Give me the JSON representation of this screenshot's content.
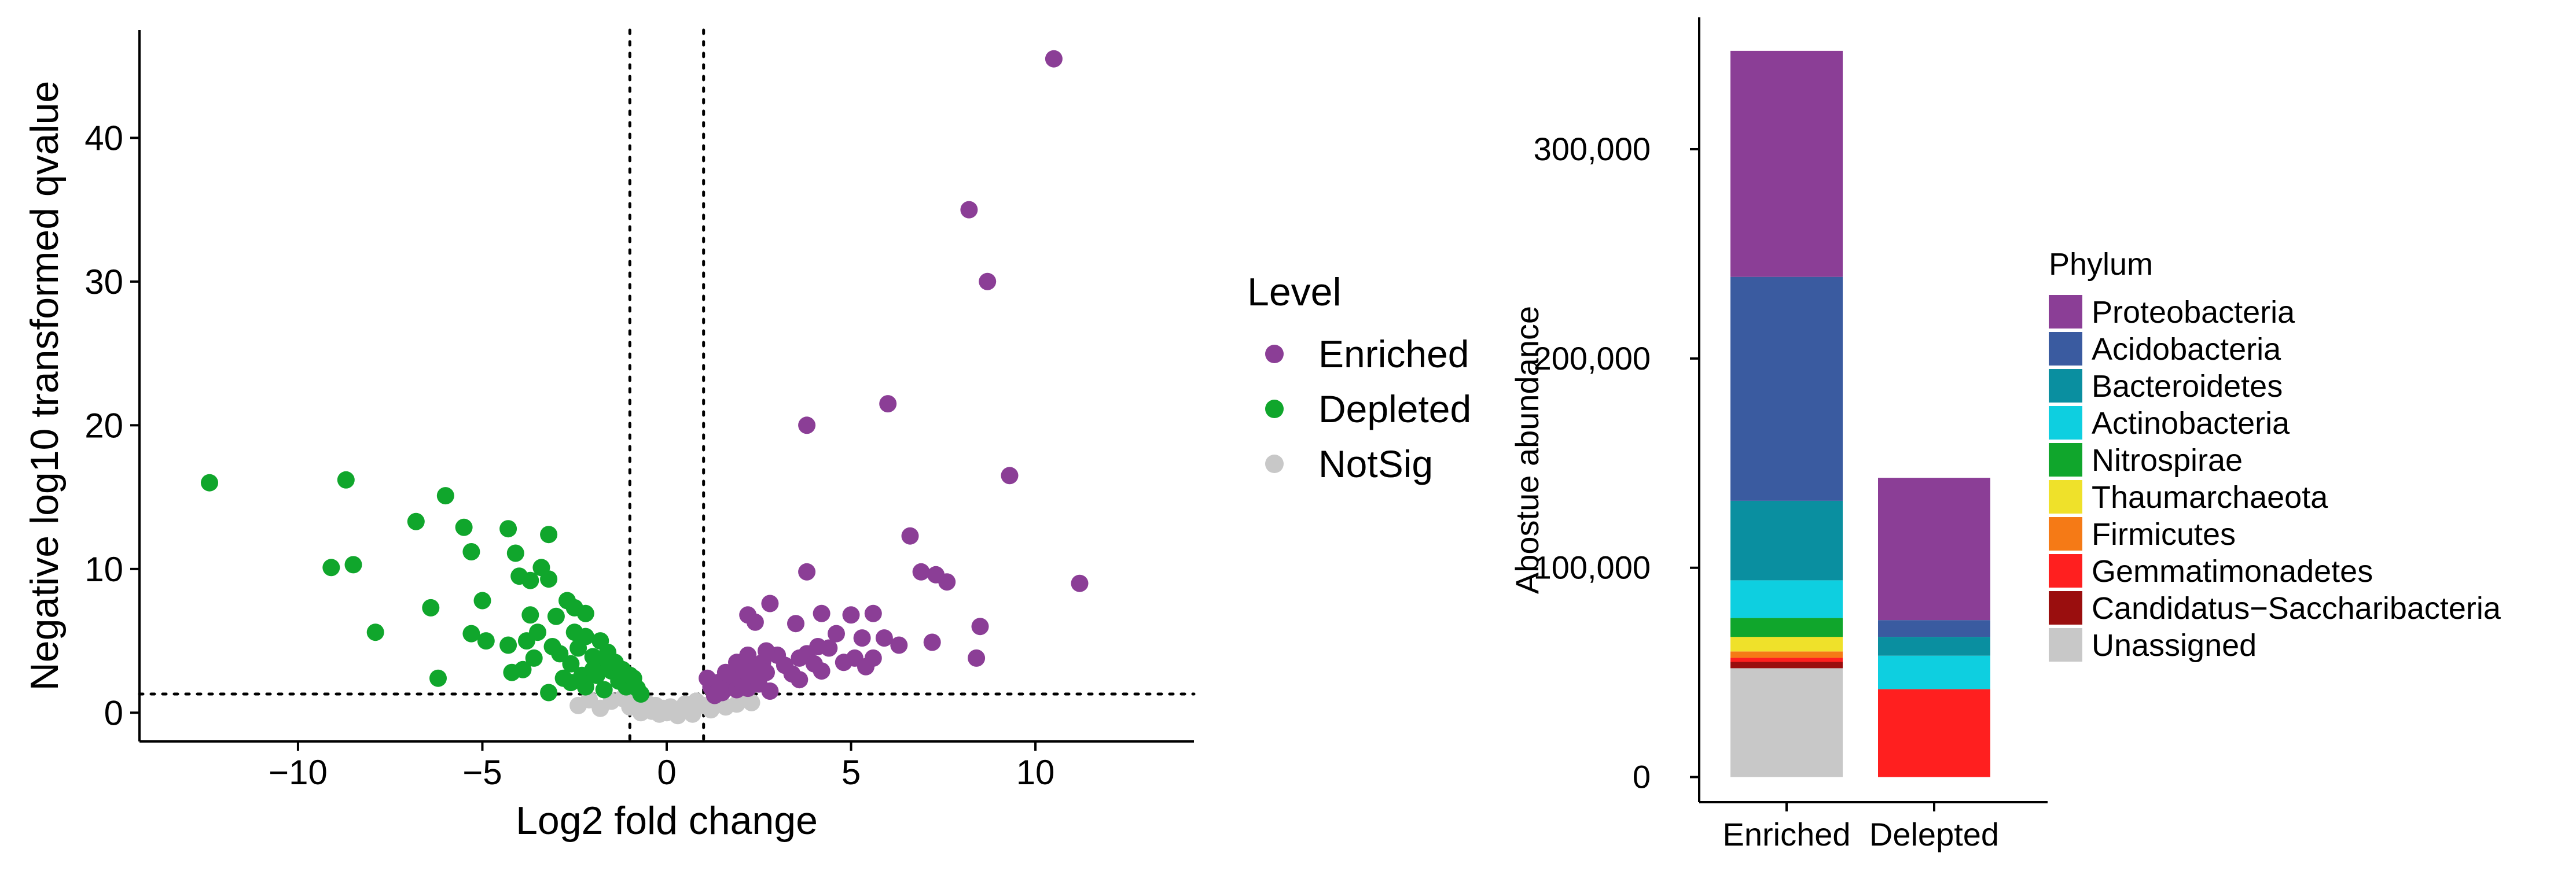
{
  "chart_data": [
    {
      "type": "scatter",
      "xlabel": "Log2 fold change",
      "ylabel": "Negative log10 transformed qvalue",
      "xlim": [
        -14.3,
        14.3
      ],
      "ylim": [
        -2,
        47.5
      ],
      "xticks": [
        -10,
        -5,
        0,
        5,
        10
      ],
      "xtick_labels": [
        "−10",
        "−5",
        "0",
        "5",
        "10"
      ],
      "yticks": [
        0,
        10,
        20,
        30,
        40
      ],
      "ytick_labels": [
        "0",
        "10",
        "20",
        "30",
        "40"
      ],
      "vlines": [
        -1,
        1
      ],
      "hline": 1.3,
      "legend": {
        "title": "Level",
        "position": "right",
        "entries": [
          {
            "label": "Enriched",
            "color": "#8B3E96"
          },
          {
            "label": "Depleted",
            "color": "#10A62C"
          },
          {
            "label": "NotSig",
            "color": "#C8C8C8"
          }
        ]
      },
      "series": [
        {
          "name": "Enriched",
          "color": "#8B3E96",
          "points": [
            [
              10.5,
              45.5
            ],
            [
              8.2,
              35
            ],
            [
              8.7,
              30
            ],
            [
              6.0,
              21.5
            ],
            [
              3.8,
              20
            ],
            [
              9.3,
              16.5
            ],
            [
              6.6,
              12.3
            ],
            [
              11.2,
              9
            ],
            [
              3.8,
              9.8
            ],
            [
              6.9,
              9.8
            ],
            [
              7.3,
              9.6
            ],
            [
              7.6,
              9.1
            ],
            [
              2.8,
              7.6
            ],
            [
              2.2,
              6.8
            ],
            [
              3.5,
              6.2
            ],
            [
              4.2,
              6.9
            ],
            [
              5.0,
              6.8
            ],
            [
              5.6,
              6.9
            ],
            [
              2.4,
              6.3
            ],
            [
              4.6,
              5.5
            ],
            [
              5.3,
              5.2
            ],
            [
              5.9,
              5.2
            ],
            [
              6.3,
              4.7
            ],
            [
              7.2,
              4.9
            ],
            [
              8.5,
              6.0
            ],
            [
              8.4,
              3.8
            ],
            [
              1.2,
              1.8
            ],
            [
              1.4,
              2.1
            ],
            [
              1.5,
              1.4
            ],
            [
              1.7,
              1.9
            ],
            [
              1.8,
              2.5
            ],
            [
              1.9,
              1.6
            ],
            [
              2.0,
              2.3
            ],
            [
              2.1,
              2.9
            ],
            [
              2.2,
              1.7
            ],
            [
              2.3,
              3.2
            ],
            [
              2.4,
              2.6
            ],
            [
              2.5,
              2.0
            ],
            [
              2.6,
              3.5
            ],
            [
              2.7,
              2.8
            ],
            [
              2.8,
              1.5
            ],
            [
              3.0,
              4.0
            ],
            [
              3.2,
              3.3
            ],
            [
              3.4,
              2.7
            ],
            [
              3.6,
              3.8
            ],
            [
              3.8,
              4.1
            ],
            [
              4.0,
              3.4
            ],
            [
              4.2,
              2.9
            ],
            [
              4.4,
              4.5
            ],
            [
              4.8,
              3.5
            ],
            [
              5.1,
              3.8
            ],
            [
              5.4,
              3.2
            ],
            [
              5.6,
              3.8
            ],
            [
              1.6,
              2.8
            ],
            [
              1.9,
              3.5
            ],
            [
              2.2,
              4.0
            ],
            [
              1.1,
              2.4
            ],
            [
              1.3,
              1.2
            ],
            [
              2.7,
              4.3
            ],
            [
              3.6,
              2.3
            ],
            [
              4.1,
              4.6
            ]
          ]
        },
        {
          "name": "Depleted",
          "color": "#10A62C",
          "points": [
            [
              -12.4,
              16
            ],
            [
              -8.7,
              16.2
            ],
            [
              -6.0,
              15.1
            ],
            [
              -4.3,
              12.8
            ],
            [
              -3.2,
              12.4
            ],
            [
              -6.8,
              13.3
            ],
            [
              -5.5,
              12.9
            ],
            [
              -5.3,
              11.2
            ],
            [
              -9.1,
              10.1
            ],
            [
              -8.5,
              10.3
            ],
            [
              -4.1,
              11.1
            ],
            [
              -3.4,
              10.1
            ],
            [
              -4.0,
              9.5
            ],
            [
              -3.7,
              9.2
            ],
            [
              -3.2,
              9.3
            ],
            [
              -5.0,
              7.8
            ],
            [
              -2.7,
              7.8
            ],
            [
              -2.5,
              7.3
            ],
            [
              -6.4,
              7.3
            ],
            [
              -2.2,
              6.9
            ],
            [
              -3.7,
              6.8
            ],
            [
              -3.0,
              6.7
            ],
            [
              -7.9,
              5.6
            ],
            [
              -5.3,
              5.5
            ],
            [
              -4.9,
              5.0
            ],
            [
              -4.3,
              4.7
            ],
            [
              -3.8,
              5.0
            ],
            [
              -3.5,
              5.6
            ],
            [
              -2.5,
              5.6
            ],
            [
              -2.2,
              5.3
            ],
            [
              -1.8,
              5.0
            ],
            [
              -6.2,
              2.4
            ],
            [
              -4.2,
              2.8
            ],
            [
              -3.9,
              3.0
            ],
            [
              -3.2,
              1.4
            ],
            [
              -2.2,
              1.8
            ],
            [
              -1.7,
              1.6
            ],
            [
              -1.5,
              2.9
            ],
            [
              -1.4,
              3.5
            ],
            [
              -1.3,
              2.2
            ],
            [
              -1.1,
              1.8
            ],
            [
              -2.9,
              4.1
            ],
            [
              -2.6,
              3.4
            ],
            [
              -2.3,
              2.6
            ],
            [
              -2.0,
              3.9
            ],
            [
              -1.9,
              2.6
            ],
            [
              -1.7,
              3.4
            ],
            [
              -1.6,
              4.2
            ],
            [
              -1.2,
              3.0
            ],
            [
              -0.9,
              2.4
            ],
            [
              -0.8,
              1.7
            ],
            [
              -2.8,
              2.4
            ],
            [
              -3.6,
              3.8
            ],
            [
              -2.4,
              4.5
            ],
            [
              -2.0,
              3.0
            ],
            [
              -1.0,
              2.6
            ],
            [
              -0.7,
              1.3
            ],
            [
              -3.1,
              4.6
            ],
            [
              -2.6,
              2.1
            ]
          ]
        },
        {
          "name": "NotSig",
          "color": "#C8C8C8",
          "points": [
            [
              -2.4,
              0.5
            ],
            [
              -1.5,
              0.8
            ],
            [
              -1.0,
              0.4
            ],
            [
              -0.8,
              0.9
            ],
            [
              -0.6,
              0.3
            ],
            [
              -0.5,
              0.6
            ],
            [
              -0.4,
              0.1
            ],
            [
              -0.3,
              0.5
            ],
            [
              -0.2,
              -0.1
            ],
            [
              -0.1,
              0.3
            ],
            [
              0.0,
              0.0
            ],
            [
              0.1,
              0.4
            ],
            [
              0.2,
              0.1
            ],
            [
              0.3,
              -0.2
            ],
            [
              0.4,
              0.3
            ],
            [
              0.5,
              0.6
            ],
            [
              0.6,
              0.2
            ],
            [
              0.8,
              0.8
            ],
            [
              1.0,
              0.5
            ],
            [
              1.3,
              0.9
            ],
            [
              1.6,
              0.4
            ],
            [
              2.1,
              1.0
            ],
            [
              2.3,
              0.7
            ],
            [
              -1.8,
              0.3
            ],
            [
              -1.2,
              1.0
            ],
            [
              -0.7,
              0.0
            ],
            [
              0.7,
              -0.1
            ],
            [
              1.2,
              0.2
            ],
            [
              1.9,
              0.6
            ],
            [
              -2.1,
              0.9
            ]
          ]
        }
      ]
    },
    {
      "type": "bar",
      "stacked": true,
      "ylabel": "Abostue abundance",
      "xlabel": "",
      "ylim": [
        -12000,
        363000
      ],
      "yticks": [
        0,
        100000,
        200000,
        300000
      ],
      "ytick_labels": [
        "0",
        "100,000",
        "200,000",
        "300,000"
      ],
      "categories": [
        "Enriched",
        "Delepted"
      ],
      "legend": {
        "title": "Phylum",
        "position": "right",
        "entries": [
          {
            "label": "Proteobacteria",
            "color": "#8B3E96"
          },
          {
            "label": "Acidobacteria",
            "color": "#3A5BA0"
          },
          {
            "label": "Bacteroidetes",
            "color": "#0A8FA0"
          },
          {
            "label": "Actinobacteria",
            "color": "#0ECFE0"
          },
          {
            "label": "Nitrospirae",
            "color": "#10A62C"
          },
          {
            "label": "Thaumarchaeota",
            "color": "#EFE12A"
          },
          {
            "label": "Firmicutes",
            "color": "#F57A16"
          },
          {
            "label": "Gemmatimonadetes",
            "color": "#FF1F1F"
          },
          {
            "label": "Candidatus−Saccharibacteria",
            "color": "#9A0E0E"
          },
          {
            "label": "Unassigned",
            "color": "#C8C8C8"
          }
        ]
      },
      "series": [
        {
          "name": "Unassigned",
          "color": "#C8C8C8",
          "values": [
            52000,
            0
          ]
        },
        {
          "name": "Candidatus−Saccharibacteria",
          "color": "#9A0E0E",
          "values": [
            3000,
            0
          ]
        },
        {
          "name": "Gemmatimonadetes",
          "color": "#FF1F1F",
          "values": [
            2000,
            42000
          ]
        },
        {
          "name": "Firmicutes",
          "color": "#F57A16",
          "values": [
            3000,
            0
          ]
        },
        {
          "name": "Thaumarchaeota",
          "color": "#EFE12A",
          "values": [
            7000,
            0
          ]
        },
        {
          "name": "Nitrospirae",
          "color": "#10A62C",
          "values": [
            9000,
            0
          ]
        },
        {
          "name": "Actinobacteria",
          "color": "#0ECFE0",
          "values": [
            18000,
            16000
          ]
        },
        {
          "name": "Bacteroidetes",
          "color": "#0A8FA0",
          "values": [
            38000,
            9000
          ]
        },
        {
          "name": "Acidobacteria",
          "color": "#3A5BA0",
          "values": [
            107000,
            8000
          ]
        },
        {
          "name": "Proteobacteria",
          "color": "#8B3E96",
          "values": [
            108000,
            68000
          ]
        }
      ]
    }
  ]
}
